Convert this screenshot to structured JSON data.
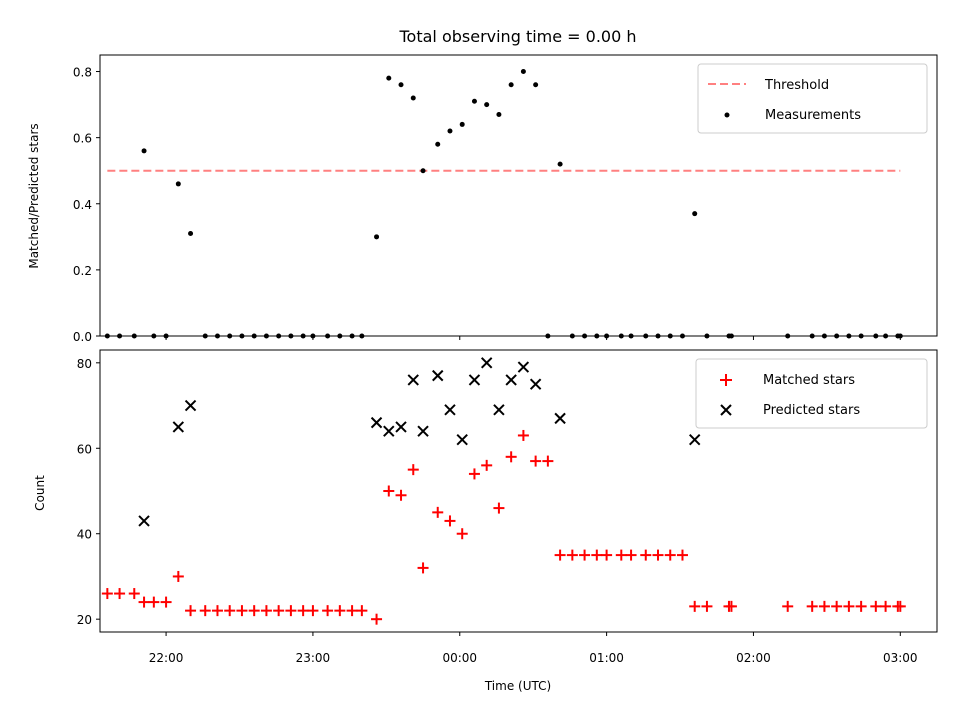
{
  "chart_data": [
    {
      "type": "scatter",
      "title": "Total observing time = 0.00 h",
      "xlabel": "",
      "ylabel": "Matched/Predicted stars",
      "xlim": [
        "21:33",
        "03:15"
      ],
      "ylim": [
        0,
        0.85
      ],
      "yticks": [
        "0.0",
        "0.2",
        "0.4",
        "0.6",
        "0.8"
      ],
      "legend_position": "top-right",
      "legend": [
        "Threshold",
        "Measurements"
      ],
      "threshold": {
        "name": "Threshold",
        "value": 0.5,
        "x_range": [
          "21:36",
          "03:00"
        ],
        "color": "#ff8080",
        "style": "dashed"
      },
      "series": [
        {
          "name": "Measurements",
          "color": "#000000",
          "points": [
            [
              "21:36",
              0.0
            ],
            [
              "21:41",
              0.0
            ],
            [
              "21:47",
              0.0
            ],
            [
              "21:51",
              0.56
            ],
            [
              "21:55",
              0.0
            ],
            [
              "22:00",
              0.0
            ],
            [
              "22:05",
              0.46
            ],
            [
              "22:10",
              0.31
            ],
            [
              "22:16",
              0.0
            ],
            [
              "22:21",
              0.0
            ],
            [
              "22:26",
              0.0
            ],
            [
              "22:31",
              0.0
            ],
            [
              "22:36",
              0.0
            ],
            [
              "22:41",
              0.0
            ],
            [
              "22:46",
              0.0
            ],
            [
              "22:51",
              0.0
            ],
            [
              "22:56",
              0.0
            ],
            [
              "23:00",
              0.0
            ],
            [
              "23:06",
              0.0
            ],
            [
              "23:11",
              0.0
            ],
            [
              "23:16",
              0.0
            ],
            [
              "23:20",
              0.0
            ],
            [
              "23:26",
              0.3
            ],
            [
              "23:31",
              0.78
            ],
            [
              "23:36",
              0.76
            ],
            [
              "23:41",
              0.72
            ],
            [
              "23:45",
              0.5
            ],
            [
              "23:51",
              0.58
            ],
            [
              "23:56",
              0.62
            ],
            [
              "00:01",
              0.64
            ],
            [
              "00:06",
              0.71
            ],
            [
              "00:11",
              0.7
            ],
            [
              "00:16",
              0.67
            ],
            [
              "00:21",
              0.76
            ],
            [
              "00:26",
              0.8
            ],
            [
              "00:31",
              0.76
            ],
            [
              "00:36",
              0.0
            ],
            [
              "00:41",
              0.52
            ],
            [
              "00:46",
              0.0
            ],
            [
              "00:51",
              0.0
            ],
            [
              "00:56",
              0.0
            ],
            [
              "01:00",
              0.0
            ],
            [
              "01:06",
              0.0
            ],
            [
              "01:10",
              0.0
            ],
            [
              "01:16",
              0.0
            ],
            [
              "01:21",
              0.0
            ],
            [
              "01:26",
              0.0
            ],
            [
              "01:31",
              0.0
            ],
            [
              "01:36",
              0.37
            ],
            [
              "01:41",
              0.0
            ],
            [
              "01:50",
              0.0
            ],
            [
              "01:51",
              0.0
            ],
            [
              "02:14",
              0.0
            ],
            [
              "02:24",
              0.0
            ],
            [
              "02:29",
              0.0
            ],
            [
              "02:34",
              0.0
            ],
            [
              "02:39",
              0.0
            ],
            [
              "02:44",
              0.0
            ],
            [
              "02:50",
              0.0
            ],
            [
              "02:54",
              0.0
            ],
            [
              "02:59",
              0.0
            ],
            [
              "03:00",
              0.0
            ]
          ]
        }
      ]
    },
    {
      "type": "scatter",
      "title": "",
      "xlabel": "Time (UTC)",
      "ylabel": "Count",
      "xlim": [
        "21:33",
        "03:15"
      ],
      "ylim": [
        17,
        83
      ],
      "yticks": [
        "20",
        "40",
        "60",
        "80"
      ],
      "xticks": [
        "22:00",
        "23:00",
        "00:00",
        "01:00",
        "02:00",
        "03:00"
      ],
      "legend_position": "top-right",
      "legend": [
        "Matched stars",
        "Predicted stars"
      ],
      "series": [
        {
          "name": "Matched stars",
          "color": "#ff0000",
          "marker": "plus",
          "points": [
            [
              "21:36",
              26
            ],
            [
              "21:41",
              26
            ],
            [
              "21:47",
              26
            ],
            [
              "21:51",
              24
            ],
            [
              "21:55",
              24
            ],
            [
              "22:00",
              24
            ],
            [
              "22:05",
              30
            ],
            [
              "22:10",
              22
            ],
            [
              "22:16",
              22
            ],
            [
              "22:21",
              22
            ],
            [
              "22:26",
              22
            ],
            [
              "22:31",
              22
            ],
            [
              "22:36",
              22
            ],
            [
              "22:41",
              22
            ],
            [
              "22:46",
              22
            ],
            [
              "22:51",
              22
            ],
            [
              "22:56",
              22
            ],
            [
              "23:00",
              22
            ],
            [
              "23:06",
              22
            ],
            [
              "23:11",
              22
            ],
            [
              "23:16",
              22
            ],
            [
              "23:20",
              22
            ],
            [
              "23:26",
              20
            ],
            [
              "23:31",
              50
            ],
            [
              "23:36",
              49
            ],
            [
              "23:41",
              55
            ],
            [
              "23:45",
              32
            ],
            [
              "23:51",
              45
            ],
            [
              "23:56",
              43
            ],
            [
              "00:01",
              40
            ],
            [
              "00:06",
              54
            ],
            [
              "00:11",
              56
            ],
            [
              "00:16",
              46
            ],
            [
              "00:21",
              58
            ],
            [
              "00:26",
              63
            ],
            [
              "00:31",
              57
            ],
            [
              "00:36",
              57
            ],
            [
              "00:41",
              35
            ],
            [
              "00:46",
              35
            ],
            [
              "00:51",
              35
            ],
            [
              "00:56",
              35
            ],
            [
              "01:00",
              35
            ],
            [
              "01:06",
              35
            ],
            [
              "01:10",
              35
            ],
            [
              "01:16",
              35
            ],
            [
              "01:21",
              35
            ],
            [
              "01:26",
              35
            ],
            [
              "01:31",
              35
            ],
            [
              "01:36",
              23
            ],
            [
              "01:41",
              23
            ],
            [
              "01:50",
              23
            ],
            [
              "01:51",
              23
            ],
            [
              "02:14",
              23
            ],
            [
              "02:24",
              23
            ],
            [
              "02:29",
              23
            ],
            [
              "02:34",
              23
            ],
            [
              "02:39",
              23
            ],
            [
              "02:44",
              23
            ],
            [
              "02:50",
              23
            ],
            [
              "02:54",
              23
            ],
            [
              "02:59",
              23
            ],
            [
              "03:00",
              23
            ]
          ]
        },
        {
          "name": "Predicted stars",
          "color": "#000000",
          "marker": "x",
          "points": [
            [
              "21:51",
              43
            ],
            [
              "22:05",
              65
            ],
            [
              "22:10",
              70
            ],
            [
              "23:26",
              66
            ],
            [
              "23:31",
              64
            ],
            [
              "23:36",
              65
            ],
            [
              "23:41",
              76
            ],
            [
              "23:45",
              64
            ],
            [
              "23:51",
              77
            ],
            [
              "23:56",
              69
            ],
            [
              "00:01",
              62
            ],
            [
              "00:06",
              76
            ],
            [
              "00:11",
              80
            ],
            [
              "00:16",
              69
            ],
            [
              "00:21",
              76
            ],
            [
              "00:26",
              79
            ],
            [
              "00:31",
              75
            ],
            [
              "00:41",
              67
            ],
            [
              "01:36",
              62
            ]
          ]
        }
      ]
    }
  ]
}
